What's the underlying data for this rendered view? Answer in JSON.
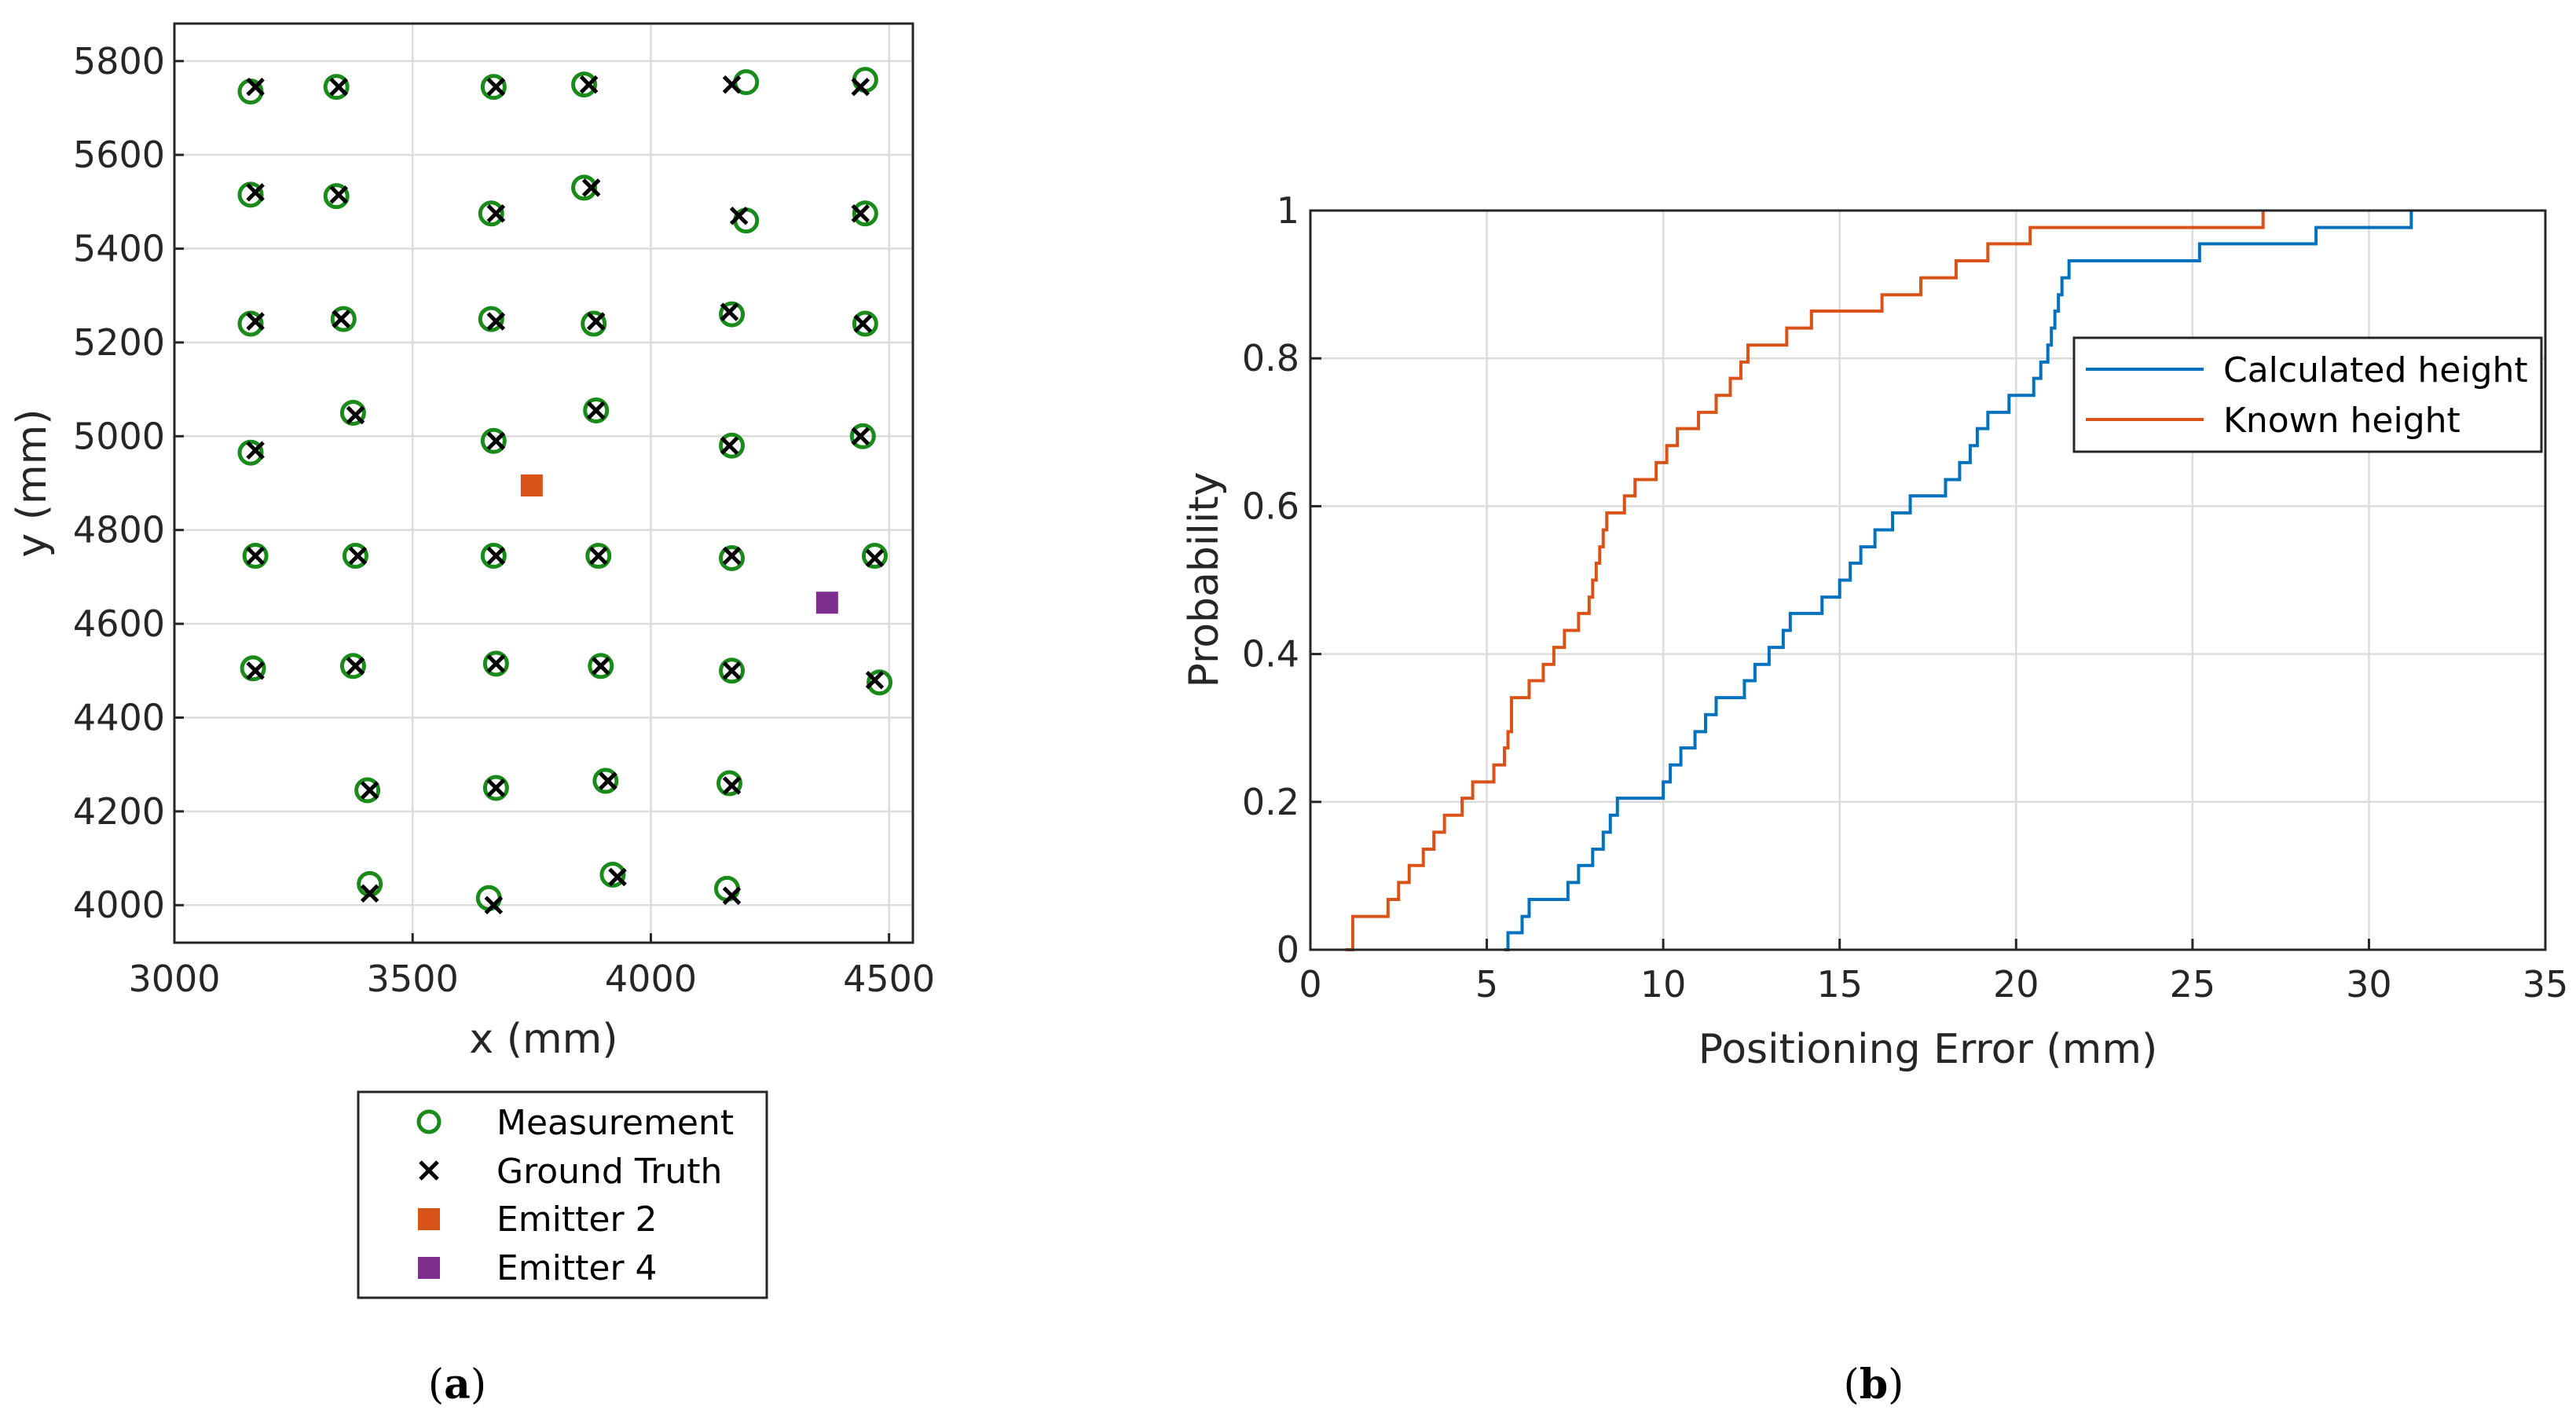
{
  "chart_data": [
    {
      "type": "scatter",
      "panel_label": "a",
      "xlabel": "x (mm)",
      "ylabel": "y (mm)",
      "xlim": [
        3000,
        4550
      ],
      "ylim": [
        3920,
        5880
      ],
      "xticks": [
        3000,
        3500,
        4000,
        4500
      ],
      "yticks": [
        4000,
        4200,
        4400,
        4600,
        4800,
        5000,
        5200,
        5400,
        5600,
        5800
      ],
      "grid": true,
      "legend_position": "below",
      "colors": {
        "measurement": "#1a8a1a",
        "ground_truth": "#000000",
        "emitter2": "#d95319",
        "emitter4": "#7e2f8e"
      },
      "series": [
        {
          "name": "Measurement",
          "marker": "circle",
          "points": [
            [
              3160,
              5735
            ],
            [
              3340,
              5745
            ],
            [
              3670,
              5745
            ],
            [
              3860,
              5750
            ],
            [
              4200,
              5755
            ],
            [
              4450,
              5760
            ],
            [
              3160,
              5515
            ],
            [
              3340,
              5512
            ],
            [
              3665,
              5475
            ],
            [
              3860,
              5530
            ],
            [
              4200,
              5460
            ],
            [
              4450,
              5475
            ],
            [
              3160,
              5240
            ],
            [
              3355,
              5250
            ],
            [
              3665,
              5250
            ],
            [
              3880,
              5240
            ],
            [
              4170,
              5260
            ],
            [
              4450,
              5240
            ],
            [
              3160,
              4965
            ],
            [
              3375,
              5050
            ],
            [
              3670,
              4990
            ],
            [
              3885,
              5055
            ],
            [
              4170,
              4980
            ],
            [
              4445,
              5000
            ],
            [
              3170,
              4745
            ],
            [
              3380,
              4745
            ],
            [
              3670,
              4745
            ],
            [
              3890,
              4745
            ],
            [
              4170,
              4740
            ],
            [
              4470,
              4745
            ],
            [
              3165,
              4505
            ],
            [
              3375,
              4510
            ],
            [
              3675,
              4515
            ],
            [
              3895,
              4510
            ],
            [
              4170,
              4500
            ],
            [
              4480,
              4475
            ],
            [
              3405,
              4245
            ],
            [
              3675,
              4250
            ],
            [
              3905,
              4265
            ],
            [
              4165,
              4260
            ],
            [
              3410,
              4045
            ],
            [
              3660,
              4015
            ],
            [
              3920,
              4065
            ],
            [
              4160,
              4035
            ]
          ]
        },
        {
          "name": "Ground Truth",
          "marker": "x",
          "points": [
            [
              3170,
              5745
            ],
            [
              3345,
              5745
            ],
            [
              3675,
              5745
            ],
            [
              3870,
              5750
            ],
            [
              4170,
              5750
            ],
            [
              4440,
              5745
            ],
            [
              3170,
              5520
            ],
            [
              3345,
              5515
            ],
            [
              3675,
              5475
            ],
            [
              3875,
              5530
            ],
            [
              4185,
              5470
            ],
            [
              4440,
              5475
            ],
            [
              3170,
              5245
            ],
            [
              3350,
              5250
            ],
            [
              3675,
              5245
            ],
            [
              3885,
              5245
            ],
            [
              4165,
              5265
            ],
            [
              4445,
              5240
            ],
            [
              3170,
              4970
            ],
            [
              3380,
              5045
            ],
            [
              3675,
              4990
            ],
            [
              3885,
              5055
            ],
            [
              4165,
              4980
            ],
            [
              4440,
              5000
            ],
            [
              3170,
              4745
            ],
            [
              3385,
              4745
            ],
            [
              3675,
              4745
            ],
            [
              3890,
              4745
            ],
            [
              4170,
              4745
            ],
            [
              4470,
              4740
            ],
            [
              3170,
              4500
            ],
            [
              3380,
              4510
            ],
            [
              3675,
              4515
            ],
            [
              3895,
              4510
            ],
            [
              4170,
              4500
            ],
            [
              4470,
              4480
            ],
            [
              3410,
              4245
            ],
            [
              3675,
              4250
            ],
            [
              3910,
              4265
            ],
            [
              4170,
              4255
            ],
            [
              3410,
              4025
            ],
            [
              3670,
              4000
            ],
            [
              3930,
              4060
            ],
            [
              4170,
              4020
            ]
          ]
        },
        {
          "name": "Emitter 2",
          "marker": "square",
          "points": [
            [
              3750,
              4895
            ]
          ]
        },
        {
          "name": "Emitter 4",
          "marker": "square",
          "points": [
            [
              4370,
              4645
            ]
          ]
        }
      ]
    },
    {
      "type": "line",
      "panel_label": "b",
      "xlabel": "Positioning Error (mm)",
      "ylabel": "Probability",
      "xlim": [
        0,
        35
      ],
      "ylim": [
        0,
        1
      ],
      "xticks": [
        0,
        5,
        10,
        15,
        20,
        25,
        30,
        35
      ],
      "yticks": [
        0,
        0.2,
        0.4,
        0.6,
        0.8,
        1
      ],
      "ytick_labels": [
        "0",
        "0.2",
        "0.4",
        "0.6",
        "0.8",
        "1"
      ],
      "grid": true,
      "legend_position": "top-right",
      "series": [
        {
          "name": "Calculated height",
          "color": "#0072bd",
          "x": [
            5.5,
            5.6,
            6.0,
            6.2,
            7.3,
            7.6,
            8.0,
            8.3,
            8.5,
            8.7,
            10.0,
            10.2,
            10.5,
            10.9,
            11.2,
            11.5,
            12.3,
            12.6,
            13.0,
            13.4,
            13.6,
            14.5,
            15.0,
            15.3,
            15.6,
            16.0,
            16.5,
            17.0,
            18.0,
            18.4,
            18.7,
            18.9,
            19.2,
            19.8,
            20.5,
            20.7,
            20.9,
            21.0,
            21.1,
            21.2,
            21.3,
            21.5,
            22.0,
            25.2,
            28.5,
            31.2
          ],
          "y": [
            0.0,
            0.023,
            0.045,
            0.068,
            0.091,
            0.114,
            0.136,
            0.159,
            0.182,
            0.205,
            0.227,
            0.25,
            0.273,
            0.295,
            0.318,
            0.341,
            0.364,
            0.386,
            0.409,
            0.432,
            0.455,
            0.477,
            0.5,
            0.523,
            0.545,
            0.568,
            0.591,
            0.614,
            0.636,
            0.659,
            0.682,
            0.705,
            0.727,
            0.75,
            0.773,
            0.795,
            0.818,
            0.841,
            0.864,
            0.886,
            0.909,
            0.932,
            0.932,
            0.955,
            0.977,
            1.0
          ]
        },
        {
          "name": "Known height",
          "color": "#d95319",
          "x": [
            1.0,
            1.2,
            2.2,
            2.5,
            2.8,
            3.2,
            3.5,
            3.8,
            4.3,
            4.6,
            5.2,
            5.5,
            5.6,
            5.7,
            6.2,
            6.6,
            6.9,
            7.2,
            7.6,
            7.9,
            8.0,
            8.1,
            8.2,
            8.3,
            8.4,
            8.9,
            9.2,
            9.8,
            10.1,
            10.4,
            11.0,
            11.5,
            11.9,
            12.2,
            12.4,
            12.5,
            13.5,
            14.2,
            16.2,
            17.3,
            18.3,
            19.2,
            20.4,
            20.6,
            27.0
          ],
          "y": [
            0.0,
            0.045,
            0.068,
            0.091,
            0.114,
            0.136,
            0.159,
            0.182,
            0.205,
            0.227,
            0.25,
            0.273,
            0.295,
            0.341,
            0.364,
            0.386,
            0.409,
            0.432,
            0.455,
            0.477,
            0.5,
            0.523,
            0.545,
            0.568,
            0.591,
            0.614,
            0.636,
            0.659,
            0.682,
            0.705,
            0.727,
            0.75,
            0.773,
            0.795,
            0.818,
            0.818,
            0.841,
            0.864,
            0.886,
            0.909,
            0.932,
            0.955,
            0.977,
            0.977,
            1.0
          ]
        }
      ]
    }
  ]
}
